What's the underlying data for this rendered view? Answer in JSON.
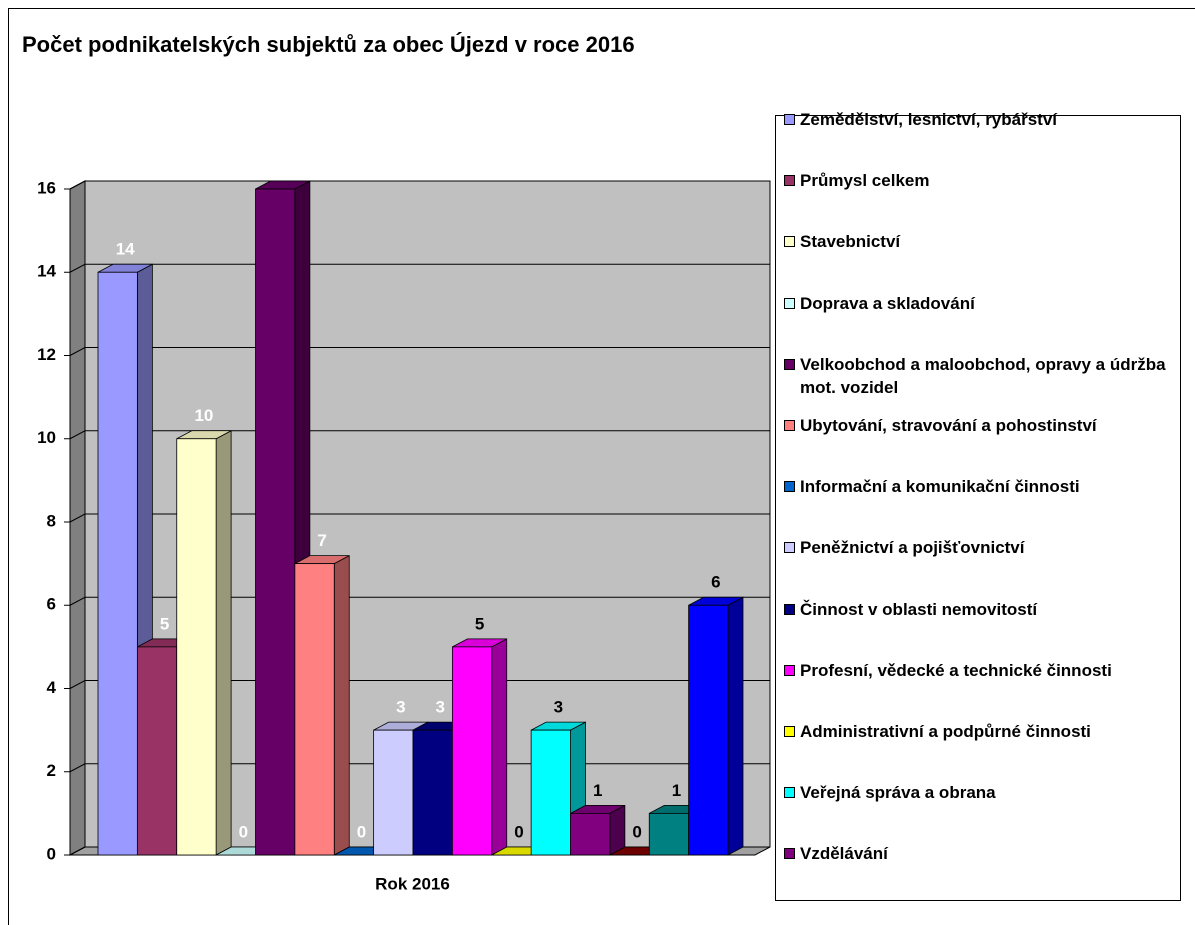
{
  "chart_data": {
    "type": "bar3d",
    "title": "Počet podnikatelských subjektů za obec Újezd v roce 2016",
    "categories": [
      "Rok 2016"
    ],
    "ylim": [
      0,
      16
    ],
    "yticks": [
      0,
      2,
      4,
      6,
      8,
      10,
      12,
      14,
      16
    ],
    "grid": true,
    "series": [
      {
        "name": "Zemědělství, lesnictví, rybářství",
        "color": "#9999ff",
        "values": [
          14
        ]
      },
      {
        "name": "Průmysl celkem",
        "color": "#993366",
        "values": [
          5
        ]
      },
      {
        "name": "Stavebnictví",
        "color": "#ffffcc",
        "values": [
          10
        ]
      },
      {
        "name": "Doprava a skladování",
        "color": "#ccffff",
        "values": [
          0
        ]
      },
      {
        "name": "Velkoobchod a maloobchod, opravy a údržba mot. vozidel",
        "color": "#660066",
        "values": [
          16
        ]
      },
      {
        "name": "Ubytování, stravování a pohostinství",
        "color": "#ff8080",
        "values": [
          7
        ]
      },
      {
        "name": "Informační a komunikační činnosti",
        "color": "#0066cc",
        "values": [
          0
        ]
      },
      {
        "name": "Peněžnictví a pojišťovnictví",
        "color": "#ccccff",
        "values": [
          3
        ]
      },
      {
        "name": "Činnost v oblasti nemovitostí",
        "color": "#000080",
        "values": [
          3
        ]
      },
      {
        "name": "Profesní, vědecké a technické činnosti",
        "color": "#ff00ff",
        "values": [
          5
        ]
      },
      {
        "name": "Administrativní a podpůrné činnosti",
        "color": "#ffff00",
        "values": [
          0
        ]
      },
      {
        "name": "Veřejná správa a obrana",
        "color": "#00ffff",
        "values": [
          3
        ]
      },
      {
        "name": "Vzdělávání",
        "color": "#800080",
        "values": [
          1
        ]
      },
      {
        "color": "#800000",
        "values": [
          0
        ]
      },
      {
        "color": "#008080",
        "values": [
          1
        ]
      },
      {
        "color": "#0000ff",
        "values": [
          6
        ]
      }
    ]
  }
}
